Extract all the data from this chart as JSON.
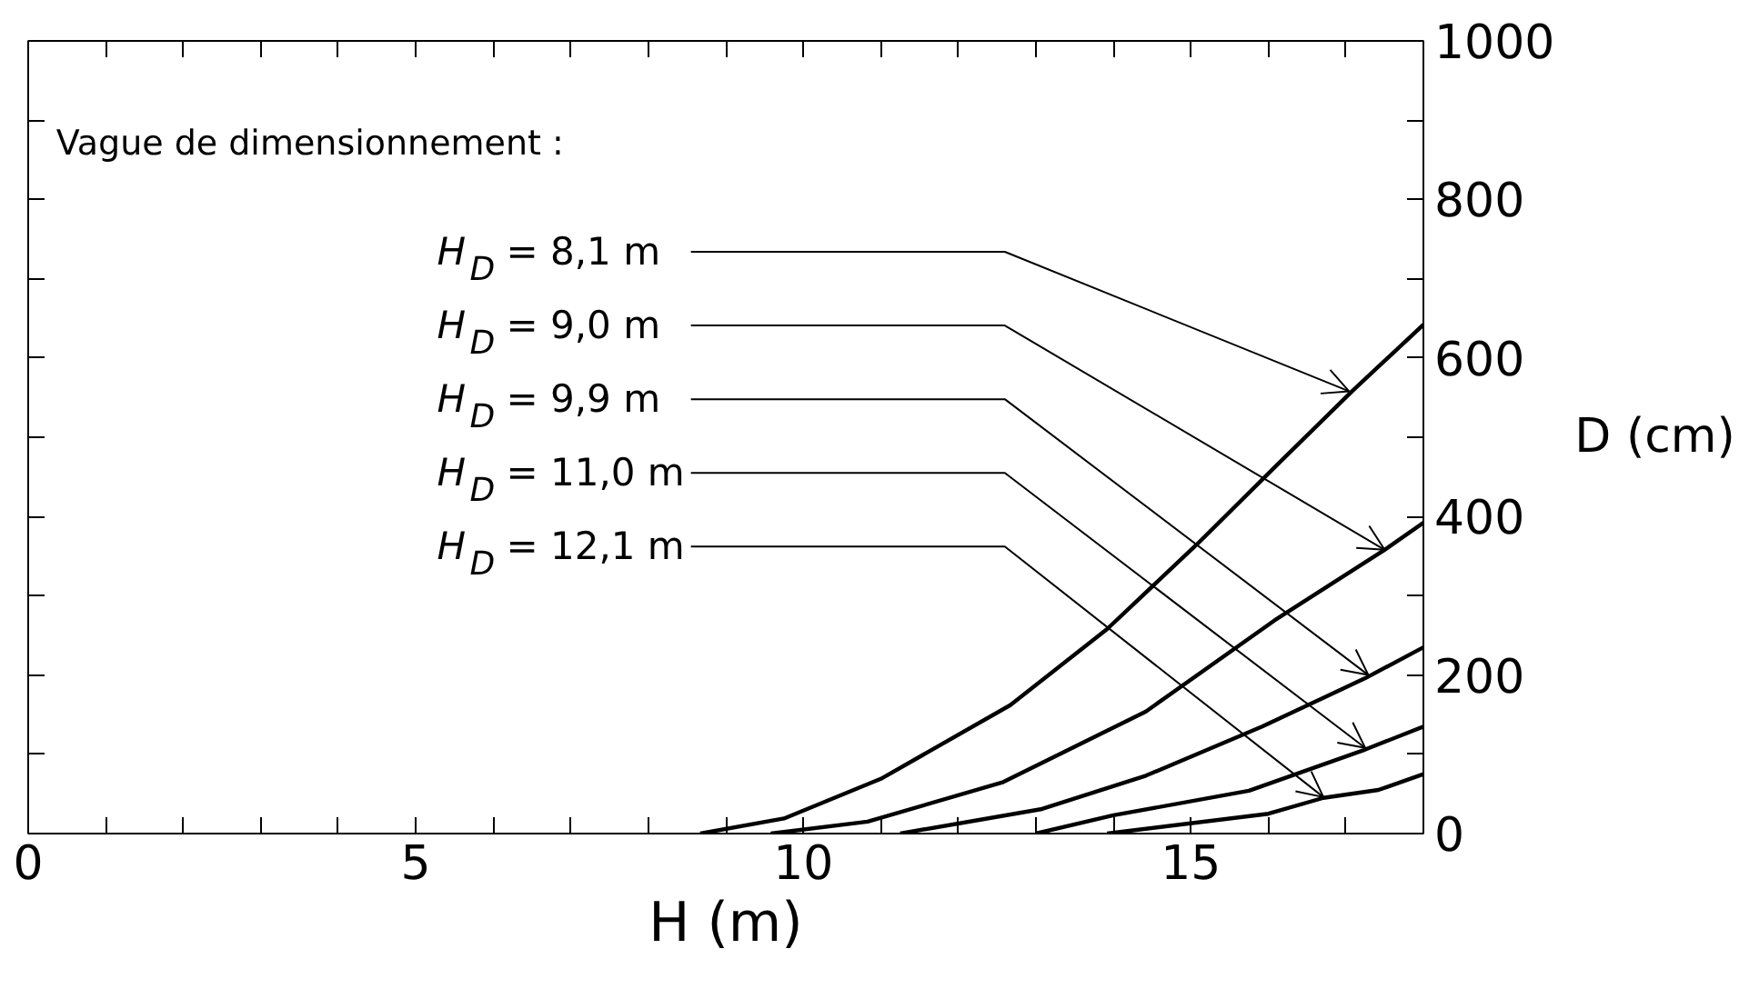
{
  "chart_data": {
    "type": "line",
    "xlabel": "H (m)",
    "ylabel": "D (cm)",
    "xlim": [
      0,
      18
    ],
    "ylim": [
      0,
      1000
    ],
    "xticks": [
      0,
      {
        "value": 1,
        "label": null
      },
      {
        "value": 2,
        "label": null
      },
      {
        "value": 3,
        "label": null
      },
      {
        "value": 4,
        "label": null
      },
      5,
      {
        "value": 6,
        "label": null
      },
      {
        "value": 7,
        "label": null
      },
      {
        "value": 8,
        "label": null
      },
      {
        "value": 9,
        "label": null
      },
      10,
      {
        "value": 11,
        "label": null
      },
      {
        "value": 12,
        "label": null
      },
      {
        "value": 13,
        "label": null
      },
      {
        "value": 14,
        "label": null
      },
      15,
      {
        "value": 16,
        "label": null
      },
      {
        "value": 17,
        "label": null
      },
      {
        "value": 18,
        "label": null
      }
    ],
    "yticks": [
      0,
      {
        "value": 100,
        "label": null
      },
      200,
      {
        "value": 300,
        "label": null
      },
      400,
      {
        "value": 500,
        "label": null
      },
      600,
      {
        "value": 700,
        "label": null
      },
      800,
      {
        "value": 900,
        "label": null
      },
      1000
    ],
    "grid": false,
    "marker": "none",
    "line_style": "solid",
    "series": [
      {
        "color": "#000000",
        "x": [
          8.67,
          9.75,
          11.0,
          12.67,
          13.92,
          15.08,
          16.08,
          17.08,
          18.0
        ],
        "values": [
          0,
          19,
          69,
          162,
          258,
          365,
          462,
          558,
          642
        ]
      },
      {
        "color": "#000000",
        "x": [
          9.58,
          10.83,
          12.58,
          14.42,
          16.08,
          17.5,
          18.0
        ],
        "values": [
          0,
          15,
          65,
          154,
          269,
          358,
          392
        ]
      },
      {
        "color": "#000000",
        "x": [
          11.25,
          13.08,
          14.42,
          15.92,
          17.25,
          18.0
        ],
        "values": [
          0,
          31,
          73,
          135,
          196,
          235
        ]
      },
      {
        "color": "#000000",
        "x": [
          13.0,
          14.0,
          15.75,
          17.25,
          18.0
        ],
        "values": [
          0,
          23,
          54,
          106,
          135
        ]
      },
      {
        "color": "#000000",
        "x": [
          13.92,
          16.0,
          16.71,
          17.42,
          18.0
        ],
        "values": [
          0,
          25,
          45,
          55,
          75
        ]
      }
    ],
    "annotations": [
      "Vague de dimensionnement :",
      {
        "text": "H$_{D}$ =   8,1 m",
        "x": 17.04,
        "y": 558
      },
      {
        "text": "H$_{D}$ =   9,0 m",
        "x": 17.5,
        "y": 358
      },
      {
        "text": "H$_{D}$ =   9,9 m",
        "x": 17.29,
        "y": 200
      },
      {
        "text": "H$_{D}$ = 11,0 m",
        "x": 17.25,
        "y": 108
      },
      {
        "text": "H$_{D}$ = 12,1 m",
        "x": 16.71,
        "y": 46
      }
    ]
  }
}
